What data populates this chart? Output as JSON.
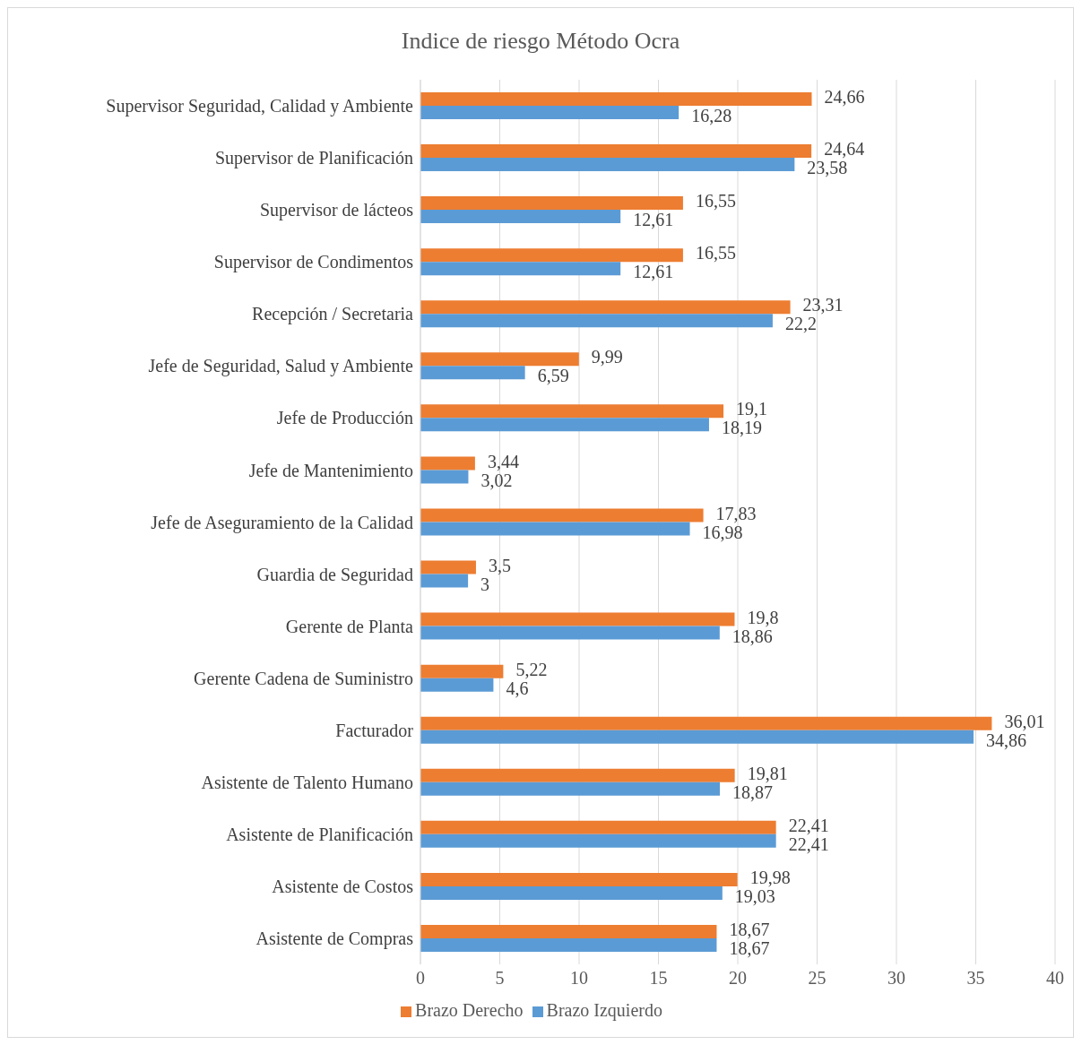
{
  "chart_data": {
    "type": "bar",
    "orientation": "horizontal",
    "title": "Indice de riesgo Método Ocra",
    "categories": [
      "Supervisor Seguridad, Calidad y Ambiente",
      "Supervisor de Planificación",
      "Supervisor de lácteos",
      "Supervisor de Condimentos",
      "Recepción / Secretaria",
      "Jefe de Seguridad, Salud y Ambiente",
      "Jefe de Producción",
      "Jefe de Mantenimiento",
      "Jefe de Aseguramiento de la Calidad",
      "Guardia de Seguridad",
      "Gerente de Planta",
      "Gerente Cadena de Suministro",
      "Facturador",
      "Asistente de Talento Humano",
      "Asistente de Planificación",
      "Asistente de Costos",
      "Asistente de Compras"
    ],
    "series": [
      {
        "name": "Brazo Derecho",
        "color": "#ed7d31",
        "values": [
          24.66,
          24.64,
          16.55,
          16.55,
          23.31,
          9.99,
          19.1,
          3.44,
          17.83,
          3.5,
          19.8,
          5.22,
          36.01,
          19.81,
          22.41,
          19.98,
          18.67
        ],
        "value_labels": [
          "24,66",
          "24,64",
          "16,55",
          "16,55",
          "23,31",
          "9,99",
          "19,1",
          "3,44",
          "17,83",
          "3,5",
          "19,8",
          "5,22",
          "36,01",
          "19,81",
          "22,41",
          "19,98",
          "18,67"
        ]
      },
      {
        "name": "Brazo Izquierdo",
        "color": "#5b9bd5",
        "values": [
          16.28,
          23.58,
          12.61,
          12.61,
          22.2,
          6.59,
          18.19,
          3.02,
          16.98,
          3,
          18.86,
          4.6,
          34.86,
          18.87,
          22.41,
          19.03,
          18.67
        ],
        "value_labels": [
          "16,28",
          "23,58",
          "12,61",
          "12,61",
          "22,2",
          "6,59",
          "18,19",
          "3,02",
          "16,98",
          "3",
          "18,86",
          "4,6",
          "34,86",
          "18,87",
          "22,41",
          "19,03",
          "18,67"
        ]
      }
    ],
    "xlim": [
      0,
      40
    ],
    "xticks": [
      0,
      5,
      10,
      15,
      20,
      25,
      30,
      35,
      40
    ],
    "grid": "x",
    "legend": "bottom"
  }
}
